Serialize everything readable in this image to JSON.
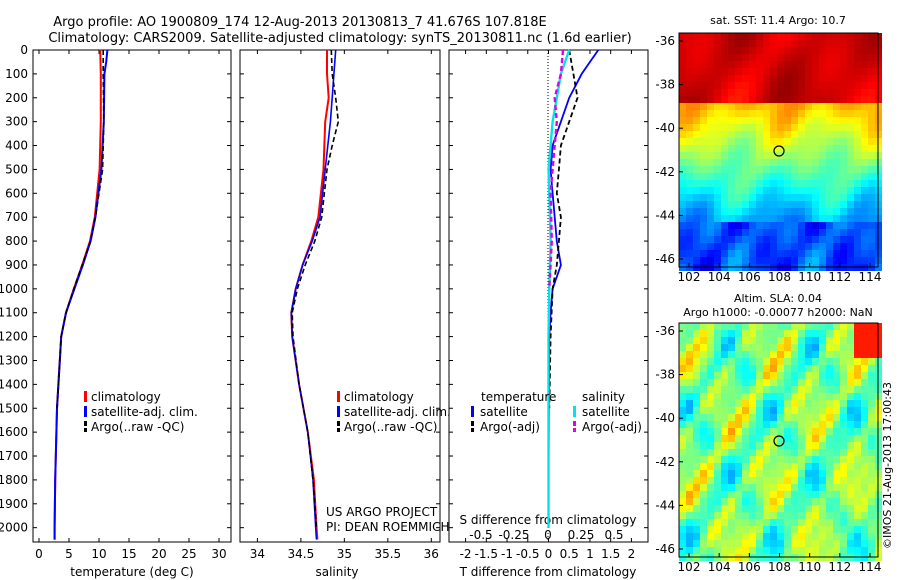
{
  "header": {
    "line1": "Argo profile: AO 1900809_174 12-Aug-2013 20130813_7 41.676S 107.818E",
    "line2": "Climatology: CARS2009. Satellite-adjusted climatology: synTS_20130811.nc (1.6d earlier)"
  },
  "colors": {
    "climatology": "#ff0000",
    "satellite": "#0000ff",
    "argo": "#000000",
    "sal_satellite": "#00e5e5",
    "sal_argo": "#e000e0"
  },
  "depth_axis": {
    "ticks": [
      "0",
      "100",
      "200",
      "300",
      "400",
      "500",
      "600",
      "700",
      "800",
      "900",
      "1000",
      "1100",
      "1200",
      "1300",
      "1400",
      "1500",
      "1600",
      "1700",
      "1800",
      "1900",
      "2000"
    ],
    "ylim": [
      0,
      2060
    ]
  },
  "panel_temp": {
    "xlabel": "temperature (deg C)",
    "xticks": [
      "0",
      "5",
      "10",
      "15",
      "20",
      "25",
      "30"
    ],
    "legend": [
      "climatology",
      "satellite-adj. clim.",
      "Argo(..raw -QC)"
    ]
  },
  "panel_sal": {
    "xlabel": "salinity",
    "xticks": [
      "34",
      "34.5",
      "35",
      "35.5",
      "36"
    ],
    "legend": [
      "climatology",
      "satellite-adj. clim.",
      "Argo(..raw -QC)"
    ],
    "credit1": "US ARGO PROJECT",
    "credit2": "PI: DEAN ROEMMICH"
  },
  "panel_diff": {
    "xlabel": "T difference from climatology",
    "xticks": [
      "-2",
      "-1.5",
      "-1",
      "-0.5",
      "0",
      "0.5",
      "1",
      "1.5",
      "2"
    ],
    "shown_xticks": [
      "-2",
      "-1.5",
      "-1",
      "-0.5",
      "0",
      "0.5",
      "1",
      "1.5",
      "2"
    ],
    "top_label": "S difference from climatology",
    "top_ticks": [
      "-0.5",
      "-0.25",
      "0",
      "0.25",
      "0.5"
    ],
    "legend_temp_title": "temperature",
    "legend_temp": [
      "satellite",
      "Argo(-adj)"
    ],
    "legend_sal_title": "salinity",
    "legend_sal": [
      "satellite",
      "Argo(-adj)"
    ]
  },
  "map_sst": {
    "title": "sat. SST: 11.4  Argo: 10.7",
    "yticks": [
      "-36",
      "-38",
      "-40",
      "-42",
      "-44",
      "-46"
    ],
    "xticks": [
      "102",
      "104",
      "106",
      "108",
      "110",
      "112",
      "114"
    ]
  },
  "map_sla": {
    "title1": "Altim. SLA: 0.04",
    "title2": "Argo h1000: -0.00077  h2000: NaN",
    "yticks": [
      "-36",
      "-38",
      "-40",
      "-42",
      "-44",
      "-46"
    ],
    "xticks": [
      "102",
      "104",
      "106",
      "108",
      "110",
      "112",
      "114"
    ]
  },
  "side_stamp": "©IMOS 21-Aug-2013 17:00:43",
  "chart_data": [
    {
      "type": "line",
      "xlabel": "temperature (deg C)",
      "ylabel": "",
      "xlim": [
        -1,
        32
      ],
      "ylim": [
        2060,
        0
      ],
      "series": [
        {
          "name": "climatology",
          "depth": [
            0,
            100,
            300,
            500,
            700,
            800,
            900,
            1000,
            1100,
            1200,
            1500,
            1800,
            2000,
            2050
          ],
          "values": [
            10.2,
            10.3,
            10.3,
            10.1,
            9.3,
            8.5,
            7.2,
            5.8,
            4.5,
            3.7,
            3.0,
            2.7,
            2.6,
            2.6
          ]
        },
        {
          "name": "satellite-adj. clim.",
          "depth": [
            0,
            50,
            100,
            300,
            500,
            700,
            800,
            900,
            1000,
            1100,
            1200,
            1500,
            1800,
            2000,
            2050
          ],
          "values": [
            11.4,
            11.2,
            10.9,
            10.8,
            10.4,
            9.4,
            8.6,
            7.3,
            5.9,
            4.5,
            3.7,
            3.0,
            2.7,
            2.6,
            2.6
          ]
        },
        {
          "name": "Argo(..raw -QC)",
          "depth": [
            0,
            100,
            300,
            500,
            700,
            800,
            900,
            1000,
            1100,
            1200,
            1500
          ],
          "values": [
            10.7,
            10.7,
            10.8,
            10.6,
            9.4,
            8.6,
            7.2,
            5.8,
            4.5,
            3.7,
            3.0
          ]
        }
      ]
    },
    {
      "type": "line",
      "xlabel": "salinity",
      "xlim": [
        33.8,
        36.1
      ],
      "ylim": [
        2060,
        0
      ],
      "series": [
        {
          "name": "climatology",
          "depth": [
            0,
            100,
            200,
            300,
            500,
            700,
            800,
            900,
            1000,
            1100,
            1200,
            1400,
            1600,
            1800,
            2000,
            2050
          ],
          "values": [
            34.8,
            34.8,
            34.82,
            34.78,
            34.76,
            34.7,
            34.62,
            34.52,
            34.44,
            34.39,
            34.4,
            34.48,
            34.58,
            34.65,
            34.68,
            34.69
          ]
        },
        {
          "name": "satellite-adj. clim.",
          "depth": [
            0,
            100,
            200,
            300,
            500,
            700,
            800,
            900,
            1000,
            1100,
            1200,
            1400,
            1600,
            1800,
            2000,
            2050
          ],
          "values": [
            34.9,
            34.88,
            34.86,
            34.84,
            34.78,
            34.72,
            34.63,
            34.52,
            34.44,
            34.39,
            34.4,
            34.48,
            34.58,
            34.64,
            34.67,
            34.68
          ]
        },
        {
          "name": "Argo(..raw -QC)",
          "depth": [
            0,
            100,
            200,
            300,
            400,
            500,
            700,
            800,
            900,
            1000,
            1100,
            1200,
            1400,
            1600,
            1800,
            2000
          ],
          "values": [
            34.85,
            34.86,
            34.9,
            34.93,
            34.86,
            34.8,
            34.74,
            34.66,
            34.55,
            34.46,
            34.4,
            34.41,
            34.48,
            34.58,
            34.64,
            34.68
          ]
        }
      ]
    },
    {
      "type": "line",
      "xlabel": "T difference from climatology",
      "xlim": [
        -2.4,
        2.4
      ],
      "ylim": [
        2060,
        0
      ],
      "series": [
        {
          "name": "temperature satellite",
          "depth": [
            0,
            50,
            100,
            200,
            300,
            400,
            500,
            600,
            700,
            800,
            900,
            1000,
            1100,
            1200,
            1500,
            1800,
            2000
          ],
          "values": [
            1.2,
            1.0,
            0.8,
            0.5,
            0.3,
            0.1,
            0.05,
            0.1,
            0.15,
            0.2,
            0.3,
            0.1,
            0.05,
            0.02,
            0.01,
            0.0,
            0.0
          ]
        },
        {
          "name": "temperature Argo(-adj)",
          "depth": [
            0,
            100,
            200,
            300,
            400,
            500,
            600,
            700,
            800,
            900,
            1000,
            1200,
            1500
          ],
          "values": [
            0.5,
            0.6,
            0.7,
            0.5,
            0.3,
            0.25,
            0.2,
            0.3,
            0.25,
            0.2,
            0.1,
            0.05,
            0.02
          ]
        },
        {
          "name": "salinity satellite",
          "depth": [
            0,
            100,
            200,
            300,
            400,
            500,
            600,
            800,
            1000,
            1200,
            1500,
            1800,
            2000
          ],
          "values": [
            0.5,
            0.3,
            0.2,
            0.1,
            0.05,
            0.0,
            0.02,
            0.05,
            0.02,
            0.0,
            0.0,
            0.0,
            0.0
          ]
        },
        {
          "name": "salinity Argo(-adj)",
          "depth": [
            0,
            100,
            200,
            300,
            400,
            500,
            600,
            800,
            1000
          ],
          "values": [
            0.35,
            0.3,
            0.15,
            0.2,
            0.15,
            0.1,
            0.05,
            0.08,
            0.02
          ]
        }
      ]
    }
  ]
}
